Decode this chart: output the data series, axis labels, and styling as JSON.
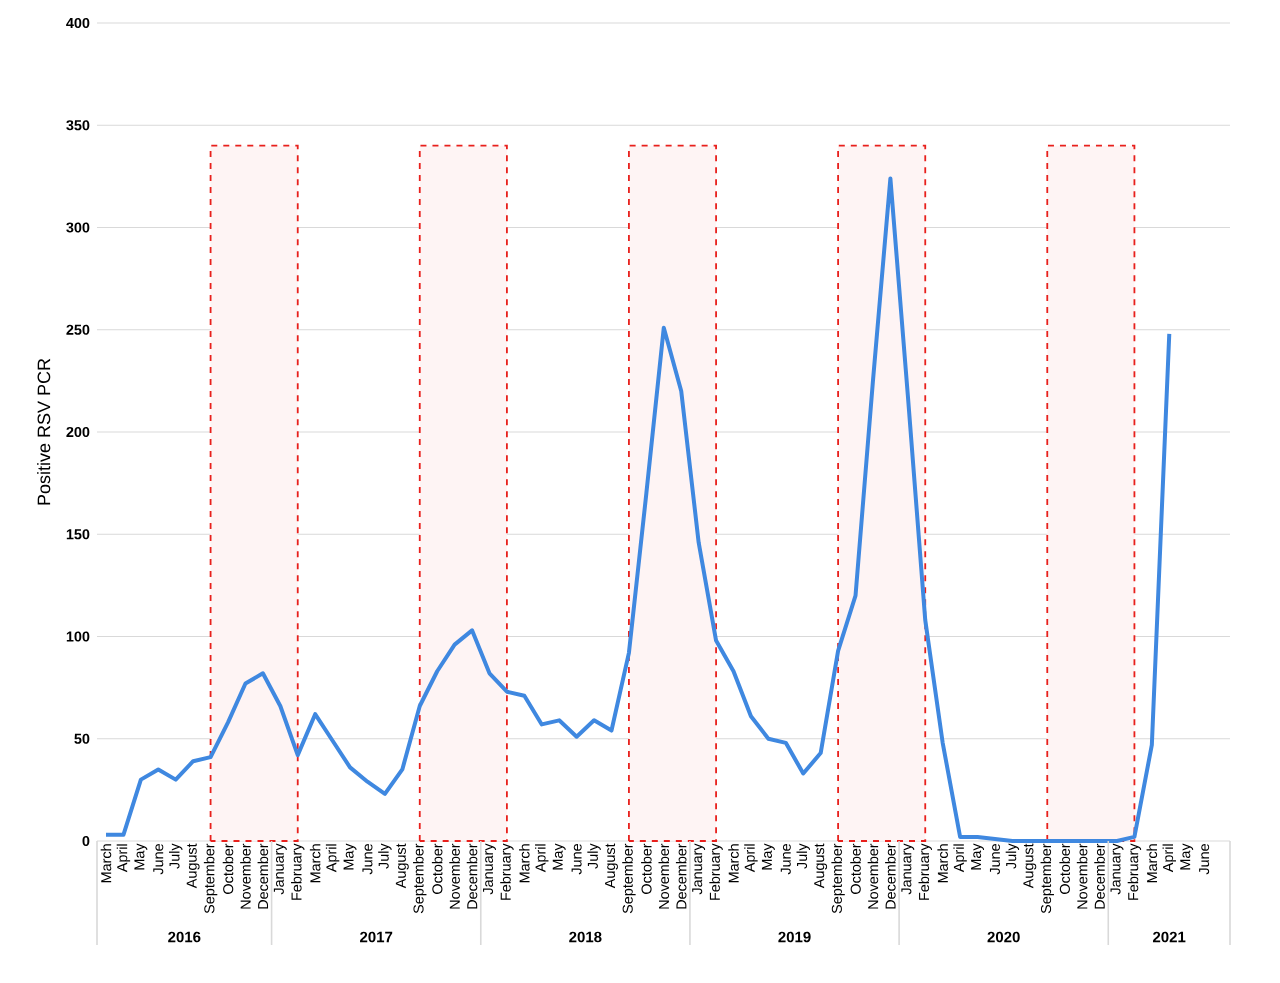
{
  "chart_data": {
    "type": "line",
    "ylabel": "Positive RSV PCR",
    "x": [
      "2016-03",
      "2016-04",
      "2016-05",
      "2016-06",
      "2016-07",
      "2016-08",
      "2016-09",
      "2016-10",
      "2016-11",
      "2016-12",
      "2017-01",
      "2017-02",
      "2017-03",
      "2017-04",
      "2017-05",
      "2017-06",
      "2017-07",
      "2017-08",
      "2017-09",
      "2017-10",
      "2017-11",
      "2017-12",
      "2018-01",
      "2018-02",
      "2018-03",
      "2018-04",
      "2018-05",
      "2018-06",
      "2018-07",
      "2018-08",
      "2018-09",
      "2018-10",
      "2018-11",
      "2018-12",
      "2019-01",
      "2019-02",
      "2019-03",
      "2019-04",
      "2019-05",
      "2019-06",
      "2019-07",
      "2019-08",
      "2019-09",
      "2019-10",
      "2019-11",
      "2019-12",
      "2020-01",
      "2020-02",
      "2020-03",
      "2020-04",
      "2020-05",
      "2020-06",
      "2020-07",
      "2020-08",
      "2020-09",
      "2020-10",
      "2020-11",
      "2020-12",
      "2021-01",
      "2021-02",
      "2021-03",
      "2021-04"
    ],
    "series": [
      {
        "color": "#3f88e0",
        "values": [
          3,
          3,
          30,
          35,
          30,
          39,
          41,
          58,
          77,
          82,
          66,
          42,
          62,
          49,
          36,
          29,
          23,
          35,
          66,
          83,
          96,
          103,
          82,
          73,
          71,
          57,
          59,
          51,
          59,
          54,
          92,
          170,
          251,
          220,
          146,
          98,
          83,
          61,
          50,
          48,
          33,
          43,
          93,
          120,
          225,
          324,
          218,
          108,
          48,
          2,
          2,
          1,
          0,
          0,
          0,
          0,
          0,
          0,
          0,
          2,
          47,
          248
        ]
      }
    ],
    "xlim": [
      "2016-02-16",
      "2021-07-16"
    ],
    "xticks": [
      {
        "value": "2016-03",
        "label": "March"
      },
      {
        "value": "2016-04",
        "label": "April"
      },
      {
        "value": "2016-05",
        "label": "May"
      },
      {
        "value": "2016-06",
        "label": "June"
      },
      {
        "value": "2016-07",
        "label": "July"
      },
      {
        "value": "2016-08",
        "label": "August"
      },
      {
        "value": "2016-09",
        "label": "September"
      },
      {
        "value": "2016-10",
        "label": "October"
      },
      {
        "value": "2016-11",
        "label": "November"
      },
      {
        "value": "2016-12",
        "label": "December"
      },
      {
        "value": "2017-01",
        "label": "January"
      },
      {
        "value": "2017-02",
        "label": "February"
      },
      {
        "value": "2017-03",
        "label": "March"
      },
      {
        "value": "2017-04",
        "label": "April"
      },
      {
        "value": "2017-05",
        "label": "May"
      },
      {
        "value": "2017-06",
        "label": "June"
      },
      {
        "value": "2017-07",
        "label": "July"
      },
      {
        "value": "2017-08",
        "label": "August"
      },
      {
        "value": "2017-09",
        "label": "September"
      },
      {
        "value": "2017-10",
        "label": "October"
      },
      {
        "value": "2017-11",
        "label": "November"
      },
      {
        "value": "2017-12",
        "label": "December"
      },
      {
        "value": "2018-01",
        "label": "January"
      },
      {
        "value": "2018-02",
        "label": "February"
      },
      {
        "value": "2018-03",
        "label": "March"
      },
      {
        "value": "2018-04",
        "label": "April"
      },
      {
        "value": "2018-05",
        "label": "May"
      },
      {
        "value": "2018-06",
        "label": "June"
      },
      {
        "value": "2018-07",
        "label": "July"
      },
      {
        "value": "2018-08",
        "label": "August"
      },
      {
        "value": "2018-09",
        "label": "September"
      },
      {
        "value": "2018-10",
        "label": "October"
      },
      {
        "value": "2018-11",
        "label": "November"
      },
      {
        "value": "2018-12",
        "label": "December"
      },
      {
        "value": "2019-01",
        "label": "January"
      },
      {
        "value": "2019-02",
        "label": "February"
      },
      {
        "value": "2019-03",
        "label": "March"
      },
      {
        "value": "2019-04",
        "label": "April"
      },
      {
        "value": "2019-05",
        "label": "May"
      },
      {
        "value": "2019-06",
        "label": "June"
      },
      {
        "value": "2019-07",
        "label": "July"
      },
      {
        "value": "2019-08",
        "label": "August"
      },
      {
        "value": "2019-09",
        "label": "September"
      },
      {
        "value": "2019-10",
        "label": "October"
      },
      {
        "value": "2019-11",
        "label": "November"
      },
      {
        "value": "2019-12",
        "label": "December"
      },
      {
        "value": "2020-01",
        "label": "January"
      },
      {
        "value": "2020-02",
        "label": "February"
      },
      {
        "value": "2020-03",
        "label": "March"
      },
      {
        "value": "2020-04",
        "label": "April"
      },
      {
        "value": "2020-05",
        "label": "May"
      },
      {
        "value": "2020-06",
        "label": "June"
      },
      {
        "value": "2020-07",
        "label": "July"
      },
      {
        "value": "2020-08",
        "label": "August"
      },
      {
        "value": "2020-09",
        "label": "September"
      },
      {
        "value": "2020-10",
        "label": "October"
      },
      {
        "value": "2020-11",
        "label": "November"
      },
      {
        "value": "2020-12",
        "label": "December"
      },
      {
        "value": "2021-01",
        "label": "January"
      },
      {
        "value": "2021-02",
        "label": "February"
      },
      {
        "value": "2021-03",
        "label": "March"
      },
      {
        "value": "2021-04",
        "label": "April"
      },
      {
        "value": "2021-05",
        "label": "May"
      },
      {
        "value": "2021-06",
        "label": "June"
      }
    ],
    "ylim": [
      0,
      400
    ],
    "yticks": [
      0,
      50,
      100,
      150,
      200,
      250,
      300,
      350,
      400
    ],
    "grid": "y",
    "bands": [
      {
        "axis": "x",
        "from": "2016-09",
        "to": "2017-02",
        "color": "#e8201c"
      },
      {
        "axis": "x",
        "from": "2017-09",
        "to": "2018-02",
        "color": "#e8201c"
      },
      {
        "axis": "x",
        "from": "2018-09",
        "to": "2019-02",
        "color": "#e8201c"
      },
      {
        "axis": "x",
        "from": "2019-09",
        "to": "2020-02",
        "color": "#e8201c"
      },
      {
        "axis": "x",
        "from": "2020-09",
        "to": "2021-02",
        "color": "#e8201c"
      }
    ],
    "annotations": [
      "2016",
      "2017",
      "2018",
      "2019",
      "2020",
      "2021"
    ]
  }
}
